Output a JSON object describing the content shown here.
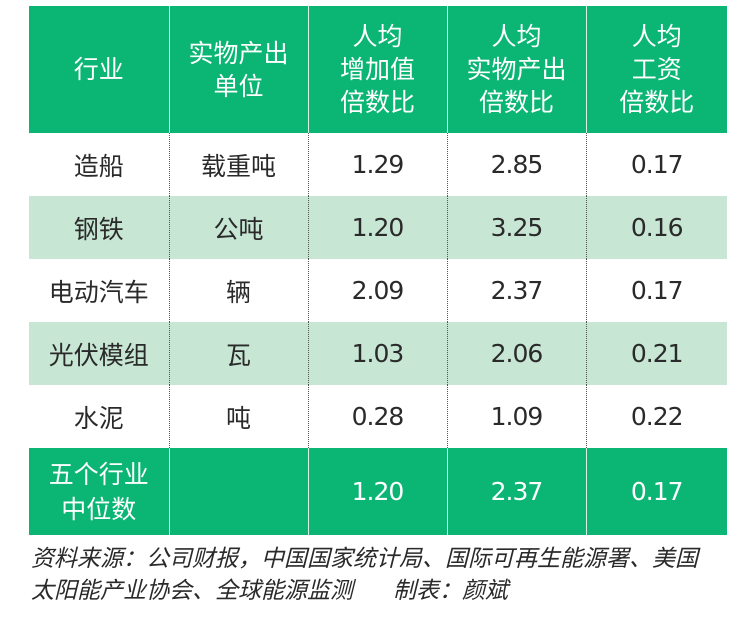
{
  "table": {
    "headers": [
      [
        "行业"
      ],
      [
        "实物产出",
        "单位"
      ],
      [
        "人均",
        "增加值",
        "倍数比"
      ],
      [
        "人均",
        "实物产出",
        "倍数比"
      ],
      [
        "人均",
        "工资",
        "倍数比"
      ]
    ],
    "rows": [
      [
        "造船",
        "载重吨",
        "1.29",
        "2.85",
        "0.17"
      ],
      [
        "钢铁",
        "公吨",
        "1.20",
        "3.25",
        "0.16"
      ],
      [
        "电动汽车",
        "辆",
        "2.09",
        "2.37",
        "0.17"
      ],
      [
        "光伏模组",
        "瓦",
        "1.03",
        "2.06",
        "0.21"
      ],
      [
        "水泥",
        "吨",
        "0.28",
        "1.09",
        "0.22"
      ]
    ],
    "footer": {
      "label": [
        "五个行业",
        "中位数"
      ],
      "unit": "",
      "values": [
        "1.20",
        "2.37",
        "0.17"
      ]
    }
  },
  "caption": {
    "source_line1": "资料来源：公司财报，中国国家统计局、国际可再生能源署、美国",
    "source_line2": "太阳能产业协会、全球能源监测",
    "credit": "制表：颜斌"
  },
  "colors": {
    "header_bg": "#0bb574",
    "alt_row_bg": "#c7e6d4"
  }
}
